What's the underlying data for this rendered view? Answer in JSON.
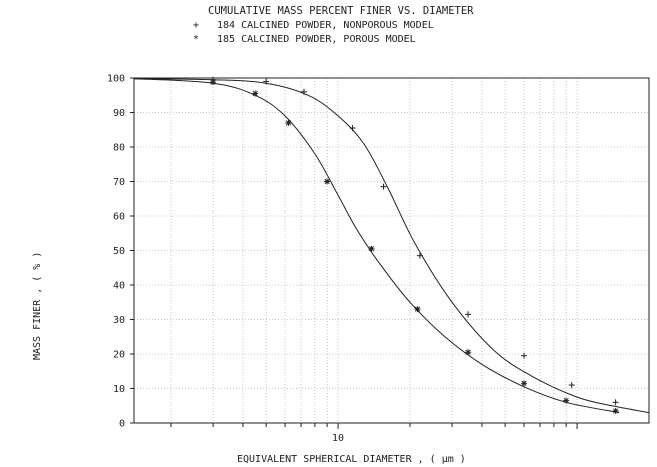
{
  "chart_data": {
    "type": "line",
    "title": "CUMULATIVE MASS PERCENT  FINER  VS. DIAMETER",
    "legend": [
      {
        "symbol": "+",
        "label": "184  CALCINED POWDER, NONPOROUS MODEL"
      },
      {
        "symbol": "*",
        "label": "185  CALCINED POWDER, POROUS MODEL"
      }
    ],
    "xlabel": "EQUIVALENT SPHERICAL DIAMETER ,  ( μm )",
    "ylabel": "MASS  FINER  ,  ( % )",
    "x_scale": "log",
    "xlim": [
      1.4,
      200
    ],
    "ylim": [
      0,
      100
    ],
    "y_ticks": [
      0,
      10,
      20,
      30,
      40,
      50,
      60,
      70,
      80,
      90,
      100
    ],
    "y_tick_labels": [
      "0",
      "10",
      "20",
      "30",
      "40",
      "50",
      "60",
      "70",
      "80",
      "90",
      "100"
    ],
    "x_tick_labels": [
      {
        "value": 10,
        "label": "10"
      }
    ],
    "grid": true,
    "series": [
      {
        "name": "184  CALCINED POWDER, NONPOROUS MODEL",
        "marker": "+",
        "x": [
          1.4,
          3.0,
          5.0,
          7.5,
          10.0,
          12.8,
          16.2,
          21.0,
          30.0,
          45.0,
          65.0,
          100.0,
          140.0,
          200.0
        ],
        "y": [
          99.8,
          99.5,
          98.5,
          95.0,
          89.0,
          81.0,
          68.0,
          52.0,
          35.0,
          21.0,
          13.5,
          7.5,
          5.0,
          3.0
        ],
        "markers": [
          {
            "x": 3.0,
            "y": 99.5
          },
          {
            "x": 5.0,
            "y": 99.0
          },
          {
            "x": 7.2,
            "y": 96.0
          },
          {
            "x": 11.5,
            "y": 85.5
          },
          {
            "x": 15.5,
            "y": 68.5
          },
          {
            "x": 22.0,
            "y": 48.5
          },
          {
            "x": 35.0,
            "y": 31.5
          },
          {
            "x": 60.0,
            "y": 19.5
          },
          {
            "x": 95.0,
            "y": 11.0
          },
          {
            "x": 145.0,
            "y": 6.0
          }
        ]
      },
      {
        "name": "185  CALCINED POWDER, POROUS MODEL",
        "marker": "*",
        "x": [
          1.4,
          3.0,
          4.5,
          6.0,
          8.0,
          10.0,
          12.0,
          15.0,
          20.0,
          28.0,
          40.0,
          60.0,
          90.0,
          150.0
        ],
        "y": [
          99.8,
          98.5,
          95.0,
          89.0,
          78.0,
          66.0,
          56.0,
          46.0,
          35.0,
          25.0,
          17.0,
          10.5,
          6.0,
          3.0
        ],
        "markers": [
          {
            "x": 3.0,
            "y": 98.8
          },
          {
            "x": 4.5,
            "y": 95.5
          },
          {
            "x": 6.2,
            "y": 87.0
          },
          {
            "x": 9.0,
            "y": 70.0
          },
          {
            "x": 13.8,
            "y": 50.5
          },
          {
            "x": 21.5,
            "y": 33.0
          },
          {
            "x": 35.0,
            "y": 20.5
          },
          {
            "x": 60.0,
            "y": 11.5
          },
          {
            "x": 90.0,
            "y": 6.5
          },
          {
            "x": 145.0,
            "y": 3.5
          }
        ]
      }
    ]
  }
}
